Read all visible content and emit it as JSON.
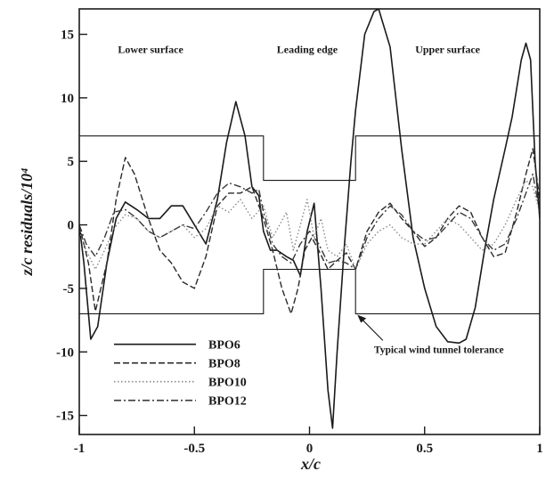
{
  "chart_data": {
    "type": "line",
    "xlabel": "x/c",
    "ylabel": "z/c residuals/10⁴",
    "xlim": [
      -1,
      1
    ],
    "ylim": [
      -16.5,
      17
    ],
    "x_ticks": [
      -1,
      -0.5,
      0,
      0.5,
      1
    ],
    "x_tick_labels": [
      "-1",
      "-0.5",
      "0",
      "0.5",
      "1"
    ],
    "y_ticks": [
      -15,
      -10,
      -5,
      0,
      5,
      10,
      15
    ],
    "y_tick_labels": [
      "-15",
      "-10",
      "-5",
      "0",
      "5",
      "10",
      "15"
    ],
    "grid": false,
    "legend_position": "bottom-left",
    "region_labels": [
      {
        "text": "Lower surface",
        "x": -0.69,
        "y": 13.8
      },
      {
        "text": "Leading edge",
        "x": -0.01,
        "y": 13.8
      },
      {
        "text": "Upper surface",
        "x": 0.6,
        "y": 13.8
      }
    ],
    "annotation": {
      "text": "Typical wind tunnel tolerance",
      "arrow_to": [
        0.2,
        -7
      ],
      "text_at": [
        0.28,
        -9.8
      ]
    },
    "tolerance": {
      "name": "",
      "upper": {
        "x": [
          -1,
          -0.2,
          -0.2,
          0.2,
          0.2,
          1
        ],
        "y": [
          7,
          7,
          3.5,
          3.5,
          7,
          7
        ]
      },
      "lower": {
        "x": [
          -1,
          -0.2,
          -0.2,
          0.2,
          0.2,
          1
        ],
        "y": [
          -7,
          -7,
          -3.5,
          -3.5,
          -7,
          -7
        ]
      }
    },
    "series": [
      {
        "name": "BPO6",
        "dash": "solid",
        "x": [
          -1,
          -0.98,
          -0.95,
          -0.92,
          -0.88,
          -0.84,
          -0.8,
          -0.75,
          -0.7,
          -0.65,
          -0.6,
          -0.55,
          -0.5,
          -0.45,
          -0.4,
          -0.36,
          -0.32,
          -0.28,
          -0.25,
          -0.22,
          -0.2,
          -0.17,
          -0.14,
          -0.1,
          -0.07,
          -0.04,
          -0.01,
          0.02,
          0.05,
          0.08,
          0.1,
          0.12,
          0.15,
          0.18,
          0.2,
          0.24,
          0.28,
          0.3,
          0.35,
          0.4,
          0.45,
          0.5,
          0.55,
          0.6,
          0.65,
          0.68,
          0.72,
          0.76,
          0.8,
          0.85,
          0.88,
          0.92,
          0.94,
          0.96,
          0.98,
          1
        ],
        "y": [
          0,
          -3,
          -9,
          -8,
          -3,
          0.5,
          1.8,
          1.2,
          0.5,
          0.5,
          1.5,
          1.5,
          0,
          -1.5,
          2,
          6.5,
          9.7,
          7,
          3,
          2.3,
          -0.5,
          -2,
          -2,
          -2.5,
          -2.8,
          -4,
          -0.5,
          1.7,
          -5,
          -13,
          -16,
          -10,
          -2,
          5,
          9,
          15,
          16.8,
          17,
          14,
          6,
          -1,
          -5,
          -8,
          -9.2,
          -9.3,
          -9,
          -6.5,
          -2,
          2,
          6,
          8.5,
          13,
          14.3,
          13,
          5,
          0.5
        ]
      },
      {
        "name": "BPO8",
        "dash": "dashed",
        "x": [
          -1,
          -0.96,
          -0.93,
          -0.88,
          -0.84,
          -0.8,
          -0.76,
          -0.7,
          -0.65,
          -0.6,
          -0.55,
          -0.5,
          -0.45,
          -0.4,
          -0.35,
          -0.3,
          -0.25,
          -0.2,
          -0.16,
          -0.12,
          -0.08,
          -0.05,
          -0.02,
          0.01,
          0.04,
          0.08,
          0.12,
          0.16,
          0.2,
          0.25,
          0.3,
          0.35,
          0.4,
          0.45,
          0.5,
          0.55,
          0.6,
          0.65,
          0.7,
          0.75,
          0.8,
          0.85,
          0.9,
          0.94,
          0.97,
          1
        ],
        "y": [
          0,
          -3,
          -6.8,
          -3,
          2,
          5.3,
          4,
          0.5,
          -2,
          -3,
          -4.5,
          -5,
          -2.5,
          1.5,
          2.5,
          2.5,
          3,
          0.5,
          -2,
          -5,
          -7,
          -5,
          -2,
          -1,
          -2,
          -3.5,
          -2.8,
          -2.2,
          -3.5,
          -0.5,
          1,
          1.7,
          0.5,
          -0.5,
          -1.7,
          -1,
          0.5,
          1.5,
          1,
          -1,
          -2.5,
          -2.2,
          1,
          4,
          6,
          2
        ]
      },
      {
        "name": "BPO10",
        "dash": "dotted",
        "x": [
          -1,
          -0.97,
          -0.93,
          -0.89,
          -0.85,
          -0.8,
          -0.75,
          -0.7,
          -0.65,
          -0.6,
          -0.55,
          -0.5,
          -0.45,
          -0.4,
          -0.35,
          -0.3,
          -0.25,
          -0.2,
          -0.16,
          -0.13,
          -0.1,
          -0.07,
          -0.04,
          -0.01,
          0.02,
          0.05,
          0.08,
          0.12,
          0.16,
          0.2,
          0.25,
          0.3,
          0.35,
          0.4,
          0.45,
          0.5,
          0.55,
          0.6,
          0.65,
          0.7,
          0.75,
          0.8,
          0.85,
          0.9,
          0.94,
          0.97,
          1
        ],
        "y": [
          -0.5,
          -2,
          -3.5,
          -2,
          -0.3,
          0.8,
          0.5,
          -0.5,
          -1,
          -0.5,
          0,
          -1,
          -0.3,
          1.5,
          1,
          2,
          0.5,
          1.5,
          -1,
          0,
          1,
          -2,
          0,
          2,
          -1,
          0.5,
          -2,
          -2.5,
          -1.5,
          -3.5,
          -1.5,
          -0.5,
          0,
          -1,
          -1.5,
          -1.5,
          -0.5,
          0.5,
          0,
          -1,
          -2,
          -1.5,
          0,
          2,
          3.5,
          3,
          1
        ]
      },
      {
        "name": "BPO12",
        "dash": "dashdot",
        "x": [
          -1,
          -0.97,
          -0.93,
          -0.89,
          -0.85,
          -0.8,
          -0.75,
          -0.7,
          -0.65,
          -0.6,
          -0.55,
          -0.5,
          -0.45,
          -0.4,
          -0.35,
          -0.3,
          -0.25,
          -0.22,
          -0.2,
          -0.16,
          -0.12,
          -0.08,
          -0.04,
          0,
          0.04,
          0.08,
          0.12,
          0.16,
          0.2,
          0.25,
          0.3,
          0.35,
          0.4,
          0.45,
          0.5,
          0.55,
          0.6,
          0.65,
          0.7,
          0.75,
          0.8,
          0.85,
          0.9,
          0.94,
          0.97,
          1
        ],
        "y": [
          0,
          -1.5,
          -2.5,
          -1,
          1,
          1.2,
          0.5,
          -0.5,
          -1,
          -0.5,
          0,
          -0.3,
          1,
          2.5,
          3.3,
          3,
          2.5,
          2.8,
          1,
          -1.5,
          -2.5,
          -3,
          -1.5,
          -0.5,
          -1.5,
          -3,
          -2.8,
          -3,
          -3.5,
          -1,
          0.5,
          1.5,
          0.8,
          -0.5,
          -1.2,
          -1,
          0,
          1,
          0.5,
          -1,
          -2,
          -1.5,
          0.5,
          2.5,
          4,
          1
        ]
      }
    ]
  }
}
